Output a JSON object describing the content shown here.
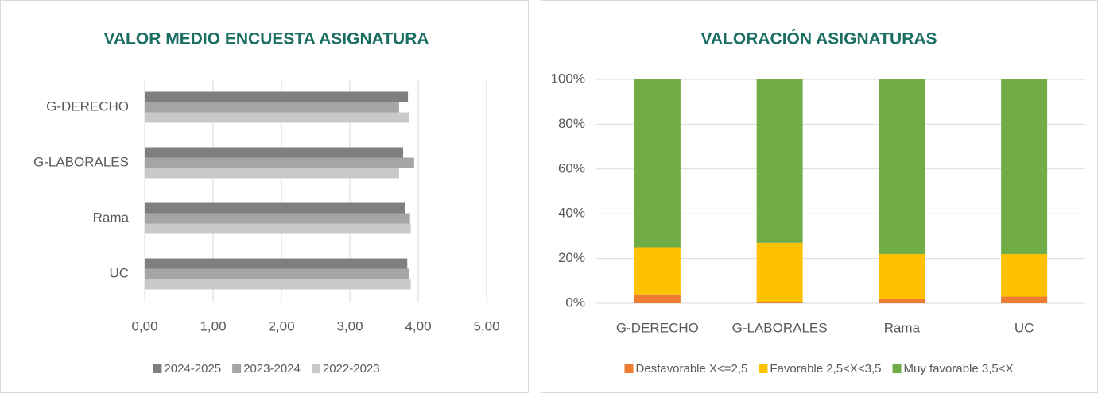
{
  "chart_data": [
    {
      "type": "bar",
      "orientation": "horizontal",
      "title": "VALOR MEDIO ENCUESTA ASIGNATURA",
      "categories": [
        "G-DERECHO",
        "G-LABORALES",
        "Rama",
        "UC"
      ],
      "series": [
        {
          "name": "2024-2025",
          "color": "#7f7f7f",
          "values": [
            3.85,
            3.78,
            3.81,
            3.84
          ]
        },
        {
          "name": "2023-2024",
          "color": "#a5a5a5",
          "values": [
            3.72,
            3.94,
            3.88,
            3.86
          ]
        },
        {
          "name": "2022-2023",
          "color": "#c9c9c9",
          "values": [
            3.87,
            3.72,
            3.89,
            3.89
          ]
        }
      ],
      "xlim": [
        0,
        5
      ],
      "xticks": [
        {
          "value": 0,
          "label": "0,00"
        },
        {
          "value": 1,
          "label": "1,00"
        },
        {
          "value": 2,
          "label": "2,00"
        },
        {
          "value": 3,
          "label": "3,00"
        },
        {
          "value": 4,
          "label": "4,00"
        },
        {
          "value": 5,
          "label": "5,00"
        }
      ],
      "grid": true,
      "legend": "bottom"
    },
    {
      "type": "bar",
      "orientation": "vertical",
      "stacked": true,
      "title": "VALORACIÓN ASIGNATURAS",
      "categories": [
        "G-DERECHO",
        "G-LABORALES",
        "Rama",
        "UC"
      ],
      "series": [
        {
          "name": "Desfavorable X<=2,5",
          "color": "#ed7d31",
          "values": [
            4,
            0.4,
            2,
            3
          ]
        },
        {
          "name": "Favorable 2,5<X<3,5",
          "color": "#ffc000",
          "values": [
            21,
            26.6,
            20,
            19
          ]
        },
        {
          "name": "Muy favorable 3,5<X",
          "color": "#70ad47",
          "values": [
            75,
            73,
            78,
            78
          ]
        }
      ],
      "ylim": [
        0,
        100
      ],
      "yticks": [
        {
          "value": 0,
          "label": "0%"
        },
        {
          "value": 20,
          "label": "20%"
        },
        {
          "value": 40,
          "label": "40%"
        },
        {
          "value": 60,
          "label": "60%"
        },
        {
          "value": 80,
          "label": "80%"
        },
        {
          "value": 100,
          "label": "100%"
        }
      ],
      "grid": true,
      "legend": "bottom"
    }
  ]
}
